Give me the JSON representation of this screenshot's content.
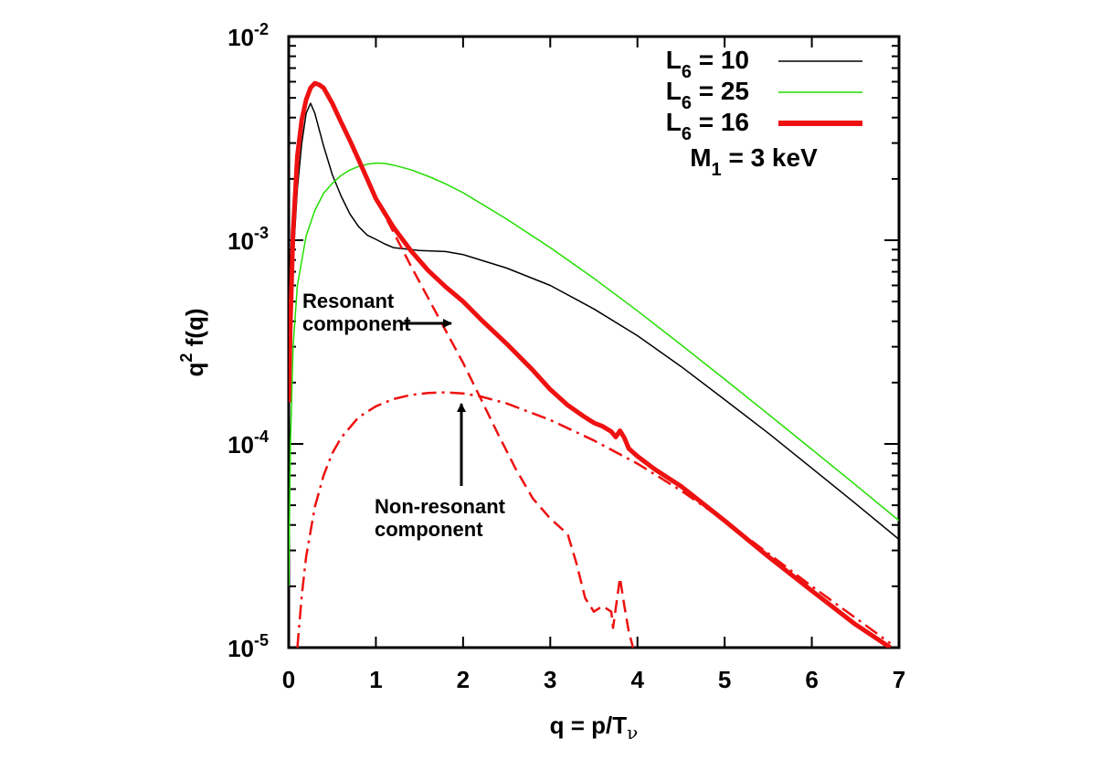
{
  "chart_data": {
    "type": "line",
    "xlabel": "q = p/T",
    "xlabel_sub": "ν",
    "ylabel": "q",
    "ylabel_sup": "2",
    "ylabel_rest": " f(q)",
    "xlim": [
      0,
      7
    ],
    "ylim": [
      1e-05,
      0.01
    ],
    "y_scale": "log",
    "grid": false,
    "legend_position": "top-right",
    "x_ticks": [
      "0",
      "1",
      "2",
      "3",
      "4",
      "5",
      "6",
      "7"
    ],
    "y_ticks": [
      {
        "base": "10",
        "exp": "-5",
        "value": 1e-05
      },
      {
        "base": "10",
        "exp": "-4",
        "value": 0.0001
      },
      {
        "base": "10",
        "exp": "-3",
        "value": 0.001
      },
      {
        "base": "10",
        "exp": "-2",
        "value": 0.01
      }
    ],
    "series": [
      {
        "name": "L6 = 10",
        "legend": {
          "main": "L",
          "sub": "6",
          "rest": " = 10"
        },
        "color": "#000000",
        "width": 1.5,
        "dash": "",
        "x": [
          0.0,
          0.05,
          0.1,
          0.15,
          0.2,
          0.25,
          0.3,
          0.4,
          0.5,
          0.6,
          0.7,
          0.8,
          0.9,
          1.0,
          1.1,
          1.2,
          1.5,
          1.8,
          2.0,
          2.5,
          3.0,
          3.5,
          4.0,
          4.5,
          5.0,
          5.5,
          6.0,
          6.5,
          7.0
        ],
        "y": [
          0.00015,
          0.0008,
          0.0018,
          0.003,
          0.0042,
          0.0047,
          0.0042,
          0.0029,
          0.0021,
          0.00165,
          0.00135,
          0.00117,
          0.00106,
          0.00101,
          0.00096,
          0.00092,
          0.00089,
          0.00088,
          0.00085,
          0.00073,
          0.0006,
          0.00046,
          0.00034,
          0.00024,
          0.000165,
          0.000113,
          7.6e-05,
          5.1e-05,
          3.4e-05
        ]
      },
      {
        "name": "L6 = 25",
        "legend": {
          "main": "L",
          "sub": "6",
          "rest": " = 25"
        },
        "color": "#22dd00",
        "width": 1.5,
        "dash": "",
        "x": [
          0.0,
          0.02,
          0.05,
          0.1,
          0.2,
          0.3,
          0.4,
          0.5,
          0.6,
          0.7,
          0.8,
          0.9,
          1.0,
          1.05,
          1.1,
          1.2,
          1.4,
          1.6,
          1.8,
          2.0,
          2.5,
          3.0,
          3.5,
          4.0,
          4.5,
          5.0,
          5.5,
          6.0,
          6.5,
          7.0
        ],
        "y": [
          2e-05,
          0.0001,
          0.0003,
          0.0006,
          0.00105,
          0.0014,
          0.0017,
          0.0019,
          0.00208,
          0.00221,
          0.0023,
          0.00236,
          0.00239,
          0.00239,
          0.00238,
          0.00234,
          0.00222,
          0.00206,
          0.00189,
          0.00171,
          0.00127,
          0.00092,
          0.00065,
          0.00045,
          0.000307,
          0.000208,
          0.00014,
          9.4e-05,
          6.3e-05,
          4.2e-05
        ]
      },
      {
        "name": "L6 = 16",
        "legend": {
          "main": "L",
          "sub": "6",
          "rest": " = 16"
        },
        "color": "#ee1111",
        "width": 5,
        "dash": "",
        "x": [
          0.0,
          0.02,
          0.05,
          0.1,
          0.15,
          0.2,
          0.25,
          0.3,
          0.35,
          0.4,
          0.5,
          0.6,
          0.7,
          0.8,
          0.9,
          1.0,
          1.2,
          1.4,
          1.6,
          1.8,
          2.0,
          2.2,
          2.5,
          2.8,
          3.0,
          3.2,
          3.4,
          3.5,
          3.6,
          3.7,
          3.75,
          3.8,
          3.85,
          3.9,
          4.0,
          4.2,
          4.5,
          5.0,
          5.5,
          6.0,
          6.5,
          6.9
        ],
        "y": [
          0.00016,
          0.0004,
          0.0011,
          0.0026,
          0.0039,
          0.0049,
          0.0056,
          0.0059,
          0.0058,
          0.0056,
          0.0047,
          0.0038,
          0.0031,
          0.0025,
          0.002,
          0.0016,
          0.00116,
          0.00089,
          0.00071,
          0.00059,
          0.0005,
          0.00041,
          0.00031,
          0.00023,
          0.000185,
          0.000155,
          0.000135,
          0.000127,
          0.000122,
          0.000115,
          0.000108,
          0.000116,
          0.000107,
          9.5e-05,
          8.7e-05,
          7.5e-05,
          6.2e-05,
          4.2e-05,
          2.8e-05,
          1.9e-05,
          1.3e-05,
          1e-05
        ]
      },
      {
        "name": "",
        "color": "#ee1111",
        "width": 2.5,
        "dash": "14,7",
        "x": [
          0.0,
          0.02,
          0.05,
          0.1,
          0.15,
          0.2,
          0.25,
          0.3,
          0.35,
          0.4,
          0.5,
          0.6,
          0.7,
          0.8,
          0.9,
          1.0,
          1.2,
          1.4,
          1.6,
          1.8,
          2.0,
          2.2,
          2.4,
          2.6,
          2.8,
          3.0,
          3.2,
          3.3,
          3.4,
          3.5,
          3.6,
          3.7,
          3.72,
          3.75,
          3.8,
          3.85,
          3.9,
          3.95
        ],
        "y": [
          0.00016,
          0.0004,
          0.0011,
          0.0026,
          0.0039,
          0.0049,
          0.0056,
          0.0059,
          0.0058,
          0.0056,
          0.0047,
          0.0038,
          0.0031,
          0.0025,
          0.002,
          0.0016,
          0.0011,
          0.00075,
          0.00052,
          0.00036,
          0.00025,
          0.000168,
          0.000112,
          7.6e-05,
          5.4e-05,
          4.3e-05,
          3.6e-05,
          2.6e-05,
          1.75e-05,
          1.5e-05,
          1.6e-05,
          1.5e-05,
          1.25e-05,
          1.55e-05,
          2.2e-05,
          1.6e-05,
          1.2e-05,
          1e-05
        ]
      },
      {
        "name": "",
        "color": "#ee1111",
        "width": 2.5,
        "dash": "16,6,3,6",
        "x": [
          0.1,
          0.15,
          0.2,
          0.3,
          0.4,
          0.5,
          0.6,
          0.8,
          1.0,
          1.2,
          1.4,
          1.6,
          1.8,
          2.0,
          2.2,
          2.5,
          3.0,
          3.5,
          4.0,
          4.5,
          5.0,
          5.5,
          6.0,
          6.5,
          6.9
        ],
        "y": [
          1e-05,
          1.8e-05,
          2.8e-05,
          4.9e-05,
          7e-05,
          9e-05,
          0.000107,
          0.000135,
          0.000153,
          0.000166,
          0.000174,
          0.000178,
          0.000179,
          0.000177,
          0.000171,
          0.000158,
          0.000131,
          0.000104,
          8e-05,
          5.9e-05,
          4.2e-05,
          2.9e-05,
          2e-05,
          1.4e-05,
          1.05e-05
        ]
      }
    ],
    "legend_extra": {
      "main": "M",
      "sub": "1",
      "rest": " = 3 keV"
    },
    "annotations": [
      {
        "line1": "Resonant",
        "line2": "component"
      },
      {
        "line1": "Non-resonant",
        "line2": "component"
      }
    ]
  }
}
